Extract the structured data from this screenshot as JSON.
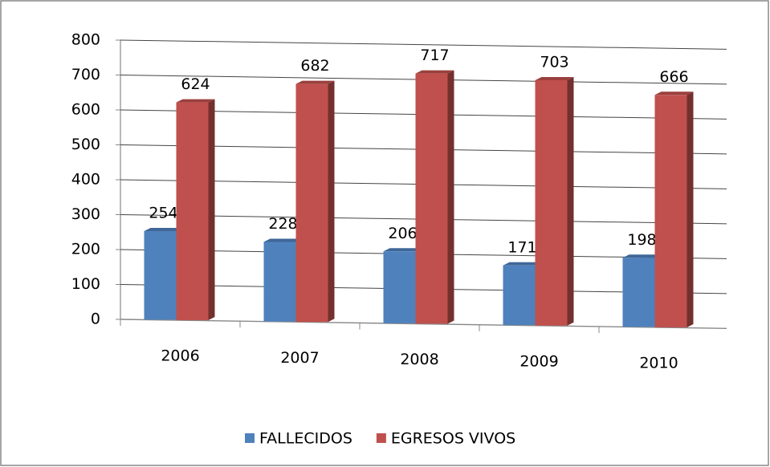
{
  "chart_data": {
    "type": "bar3d",
    "categories": [
      "2006",
      "2007",
      "2008",
      "2009",
      "2010"
    ],
    "series": [
      {
        "name": "FALLECIDOS",
        "color": "#4f81bd",
        "values": [
          254,
          228,
          206,
          171,
          198
        ]
      },
      {
        "name": "EGRESOS VIVOS",
        "color": "#c0504d",
        "values": [
          624,
          682,
          717,
          703,
          666
        ]
      }
    ],
    "ylim": [
      0,
      800
    ],
    "yticks": [
      0,
      100,
      200,
      300,
      400,
      500,
      600,
      700,
      800
    ],
    "grid": true
  }
}
